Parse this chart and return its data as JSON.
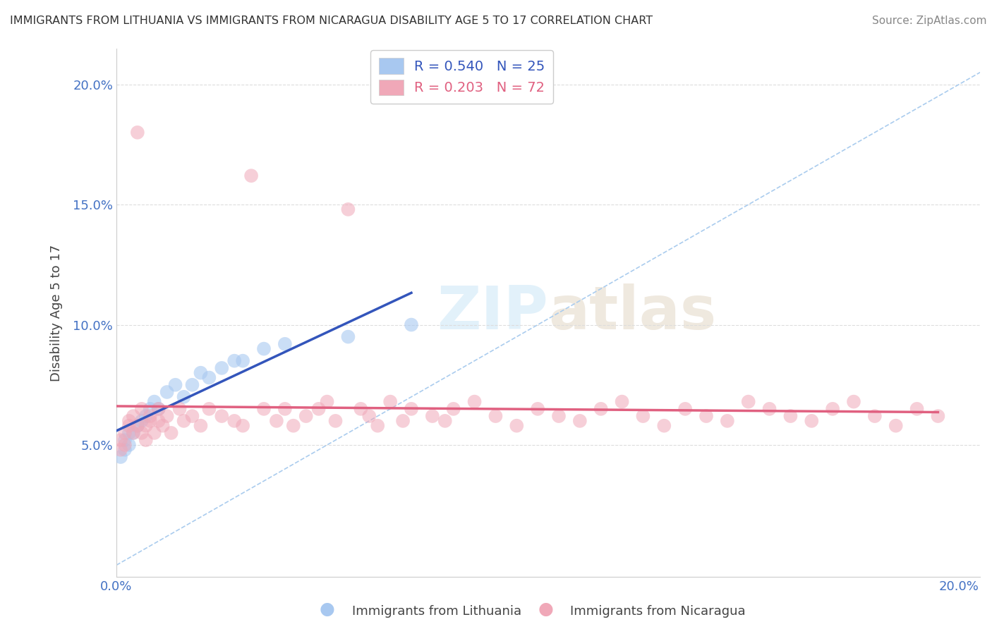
{
  "title": "IMMIGRANTS FROM LITHUANIA VS IMMIGRANTS FROM NICARAGUA DISABILITY AGE 5 TO 17 CORRELATION CHART",
  "source": "Source: ZipAtlas.com",
  "ylabel": "Disability Age 5 to 17",
  "xlim": [
    0.0,
    0.205
  ],
  "ylim": [
    -0.005,
    0.215
  ],
  "legend1_label": "R = 0.540   N = 25",
  "legend2_label": "R = 0.203   N = 72",
  "legend_x_label": "Immigrants from Lithuania",
  "legend_y_label": "Immigrants from Nicaragua",
  "color_lithuania": "#a8c8f0",
  "color_nicaragua": "#f0a8b8",
  "color_trend_lithuania": "#3355bb",
  "color_trend_nicaragua": "#e06080",
  "color_axis_labels": "#4472c4",
  "background_color": "#ffffff",
  "ref_line_color": "#aaccee",
  "grid_color": "#dddddd",
  "watermark_color": "#d0e8f8",
  "lith_x": [
    0.001,
    0.002,
    0.002,
    0.003,
    0.003,
    0.004,
    0.005,
    0.006,
    0.007,
    0.008,
    0.009,
    0.01,
    0.012,
    0.014,
    0.016,
    0.018,
    0.02,
    0.022,
    0.025,
    0.028,
    0.03,
    0.035,
    0.04,
    0.055,
    0.07
  ],
  "lith_y": [
    0.045,
    0.048,
    0.052,
    0.05,
    0.055,
    0.055,
    0.058,
    0.06,
    0.062,
    0.065,
    0.068,
    0.065,
    0.072,
    0.075,
    0.07,
    0.075,
    0.08,
    0.078,
    0.082,
    0.085,
    0.085,
    0.09,
    0.092,
    0.095,
    0.1
  ],
  "nica_x": [
    0.001,
    0.001,
    0.002,
    0.002,
    0.003,
    0.003,
    0.004,
    0.004,
    0.005,
    0.005,
    0.006,
    0.006,
    0.007,
    0.007,
    0.008,
    0.008,
    0.009,
    0.01,
    0.01,
    0.011,
    0.012,
    0.013,
    0.015,
    0.016,
    0.018,
    0.02,
    0.022,
    0.025,
    0.028,
    0.03,
    0.032,
    0.035,
    0.038,
    0.04,
    0.042,
    0.045,
    0.048,
    0.05,
    0.052,
    0.055,
    0.058,
    0.06,
    0.062,
    0.065,
    0.068,
    0.07,
    0.075,
    0.078,
    0.08,
    0.085,
    0.09,
    0.095,
    0.1,
    0.105,
    0.11,
    0.115,
    0.12,
    0.125,
    0.13,
    0.135,
    0.14,
    0.145,
    0.15,
    0.155,
    0.16,
    0.165,
    0.17,
    0.175,
    0.18,
    0.185,
    0.19,
    0.195
  ],
  "nica_y": [
    0.048,
    0.052,
    0.05,
    0.055,
    0.058,
    0.06,
    0.055,
    0.062,
    0.18,
    0.058,
    0.055,
    0.065,
    0.052,
    0.058,
    0.06,
    0.062,
    0.055,
    0.06,
    0.065,
    0.058,
    0.062,
    0.055,
    0.065,
    0.06,
    0.062,
    0.058,
    0.065,
    0.062,
    0.06,
    0.058,
    0.162,
    0.065,
    0.06,
    0.065,
    0.058,
    0.062,
    0.065,
    0.068,
    0.06,
    0.148,
    0.065,
    0.062,
    0.058,
    0.068,
    0.06,
    0.065,
    0.062,
    0.06,
    0.065,
    0.068,
    0.062,
    0.058,
    0.065,
    0.062,
    0.06,
    0.065,
    0.068,
    0.062,
    0.058,
    0.065,
    0.062,
    0.06,
    0.068,
    0.065,
    0.062,
    0.06,
    0.065,
    0.068,
    0.062,
    0.058,
    0.065,
    0.062
  ]
}
